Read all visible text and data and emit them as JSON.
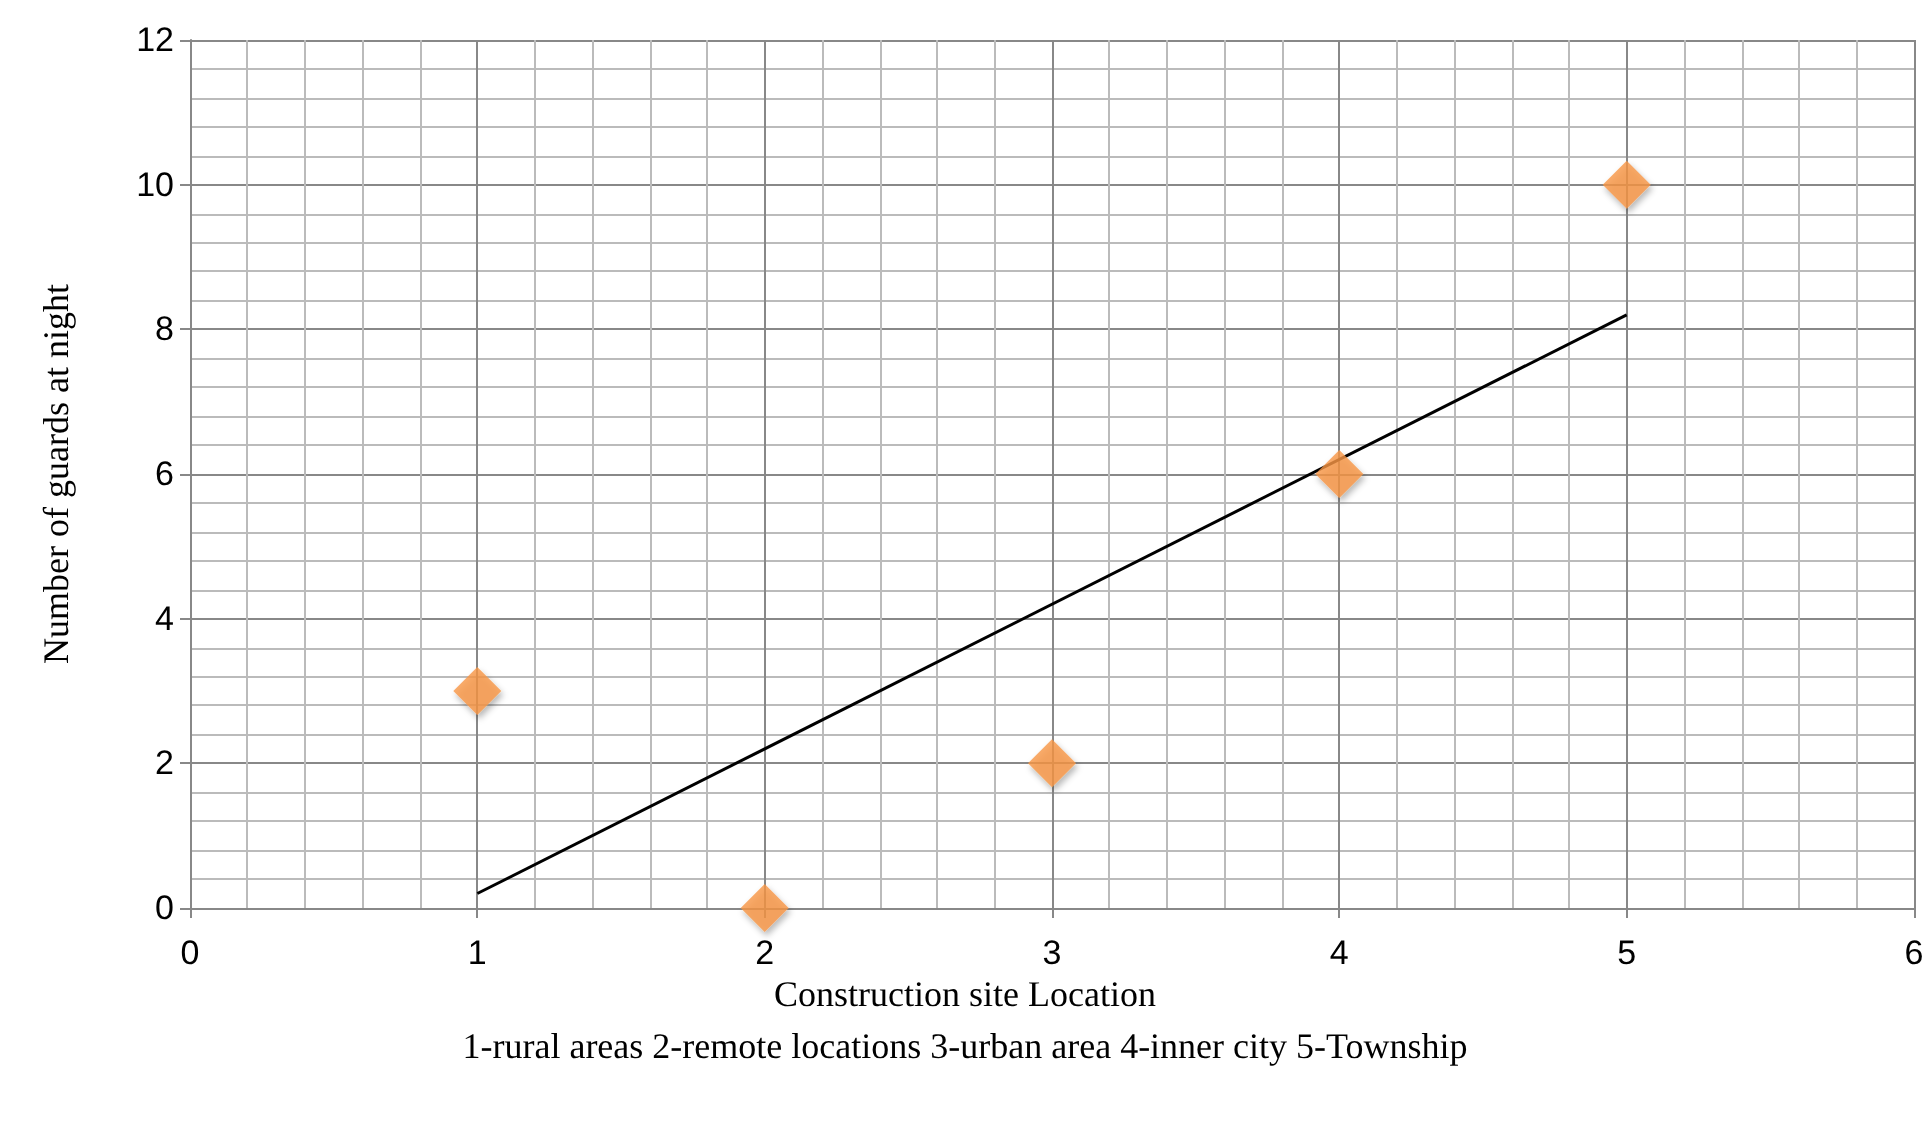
{
  "chart_data": {
    "type": "scatter",
    "xlabel": "Construction site Location",
    "ylabel": "Number of guards at night",
    "annotations": [
      "1-rural areas 2-remote locations 3-urban area 4-inner city 5-Township"
    ],
    "series": [
      {
        "color": "#f79646",
        "marker": "diamond",
        "x": [
          1,
          2,
          3,
          4,
          5
        ],
        "values": [
          3,
          0,
          2,
          6,
          10
        ]
      },
      {
        "type": "line",
        "color": "#000000",
        "marker": "none",
        "x": [
          1,
          5
        ],
        "values": [
          0.2,
          8.2
        ]
      }
    ],
    "xlim": [
      0,
      6
    ],
    "xticks": [
      0,
      1,
      2,
      3,
      4,
      5,
      6
    ],
    "ylim": [
      0,
      12
    ],
    "yticks": [
      0,
      2,
      4,
      6,
      8,
      10,
      12
    ],
    "grid": true
  }
}
